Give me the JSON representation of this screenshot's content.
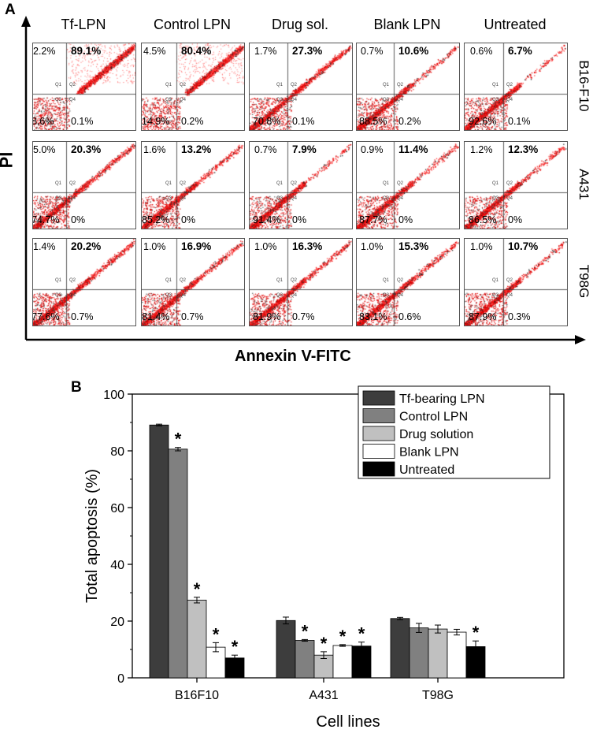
{
  "figure": {
    "panel_a_label": "A",
    "panel_b_label": "B",
    "y_axis_title": "PI",
    "x_axis_title": "Annexin V-FITC",
    "columns": [
      "Tf-LPN",
      "Control LPN",
      "Drug sol.",
      "Blank LPN",
      "Untreated"
    ],
    "rows": [
      "B16-F10",
      "A431",
      "T98G"
    ],
    "quadrant_labels": [
      "Q1",
      "Q2",
      "Q3",
      "Q4"
    ],
    "flow_panels": [
      [
        {
          "ul": "2.2%",
          "ur": "89.1%",
          "ll": "8.6%",
          "lr": "0.1%",
          "upper_level": 0.45
        },
        {
          "ul": "4.5%",
          "ur": "80.4%",
          "ll": "14.9%",
          "lr": "0.2%",
          "upper_level": 0.5
        },
        {
          "ul": "1.7%",
          "ur": "27.3%",
          "ll": "70.8%",
          "lr": "0.1%",
          "upper_level": 0.4
        },
        {
          "ul": "0.7%",
          "ur": "10.6%",
          "ll": "88.5%",
          "lr": "0.2%",
          "upper_level": 0.35
        },
        {
          "ul": "0.6%",
          "ur": "6.7%",
          "ll": "92.6%",
          "lr": "0.1%",
          "upper_level": 0.3
        }
      ],
      [
        {
          "ul": "5.0%",
          "ur": "20.3%",
          "ll": "74.7%",
          "lr": "0%",
          "upper_level": 0.3
        },
        {
          "ul": "1.6%",
          "ur": "13.2%",
          "ll": "85.2%",
          "lr": "0%",
          "upper_level": 0.3
        },
        {
          "ul": "0.7%",
          "ur": "7.9%",
          "ll": "91.4%",
          "lr": "0%",
          "upper_level": 0.3
        },
        {
          "ul": "0.9%",
          "ur": "11.4%",
          "ll": "87.7%",
          "lr": "0%",
          "upper_level": 0.3
        },
        {
          "ul": "1.2%",
          "ur": "12.3%",
          "ll": "86.5%",
          "lr": "0%",
          "upper_level": 0.3
        }
      ],
      [
        {
          "ul": "1.4%",
          "ur": "20.2%",
          "ll": "77.6%",
          "lr": "0.7%",
          "upper_level": 0.3
        },
        {
          "ul": "1.0%",
          "ur": "16.9%",
          "ll": "81.4%",
          "lr": "0.7%",
          "upper_level": 0.3
        },
        {
          "ul": "1.0%",
          "ur": "16.3%",
          "ll": "81.9%",
          "lr": "0.7%",
          "upper_level": 0.3
        },
        {
          "ul": "1.0%",
          "ur": "15.3%",
          "ll": "83.1%",
          "lr": "0.6%",
          "upper_level": 0.3
        },
        {
          "ul": "1.0%",
          "ur": "10.7%",
          "ll": "87.9%",
          "lr": "0.3%",
          "upper_level": 0.3
        }
      ]
    ]
  },
  "chart_data": {
    "type": "bar",
    "title": "",
    "xlabel": "Cell lines",
    "ylabel": "Total apoptosis (%)",
    "ylim": [
      0,
      100
    ],
    "yticks": [
      0,
      20,
      40,
      60,
      80,
      100
    ],
    "categories": [
      "B16F10",
      "A431",
      "T98G"
    ],
    "legend_position": "top-right",
    "significance_marker": "*",
    "series": [
      {
        "name": "Tf-bearing LPN",
        "color": "#3d3d3d",
        "values": [
          89.1,
          20.2,
          20.9
        ],
        "errors": [
          0.3,
          1.2,
          0.4
        ],
        "significant": [
          false,
          false,
          false
        ]
      },
      {
        "name": "Control LPN",
        "color": "#808080",
        "values": [
          80.6,
          13.2,
          17.6
        ],
        "errors": [
          0.6,
          0.3,
          1.6
        ],
        "significant": [
          true,
          true,
          false
        ]
      },
      {
        "name": "Drug solution",
        "color": "#c0c0c0",
        "values": [
          27.4,
          8.0,
          17.2
        ],
        "errors": [
          1.0,
          1.2,
          1.4
        ],
        "significant": [
          true,
          true,
          false
        ]
      },
      {
        "name": "Blank LPN",
        "color": "#ffffff",
        "values": [
          10.8,
          11.4,
          16.1
        ],
        "errors": [
          1.6,
          0.3,
          1.0
        ],
        "significant": [
          true,
          true,
          false
        ]
      },
      {
        "name": "Untreated",
        "color": "#000000",
        "values": [
          7.0,
          11.2,
          11.0
        ],
        "errors": [
          1.0,
          1.4,
          2.0
        ],
        "significant": [
          true,
          true,
          true
        ]
      }
    ]
  }
}
